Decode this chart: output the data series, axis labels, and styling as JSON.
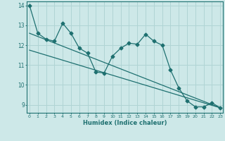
{
  "xlabel": "Humidex (Indice chaleur)",
  "ylabel": "",
  "bg_color": "#cde8e8",
  "grid_color": "#b0d4d4",
  "line_color": "#1e7070",
  "x_values": [
    0,
    1,
    2,
    3,
    4,
    5,
    6,
    7,
    8,
    9,
    10,
    11,
    12,
    13,
    14,
    15,
    16,
    17,
    18,
    19,
    20,
    21,
    22,
    23
  ],
  "series1": [
    14.0,
    12.6,
    12.3,
    12.2,
    13.1,
    12.6,
    11.85,
    11.6,
    10.65,
    10.6,
    11.45,
    11.85,
    12.1,
    12.05,
    12.55,
    12.2,
    12.0,
    10.75,
    9.85,
    9.2,
    8.9,
    8.9,
    9.1,
    8.85
  ],
  "series2_x": [
    0,
    23
  ],
  "series2_y": [
    11.75,
    8.85
  ],
  "series3_x": [
    0,
    23
  ],
  "series3_y": [
    12.6,
    8.85
  ],
  "ylim": [
    8.6,
    14.2
  ],
  "xlim": [
    -0.3,
    23.3
  ],
  "yticks": [
    9,
    10,
    11,
    12,
    13,
    14
  ],
  "xticks": [
    0,
    1,
    2,
    3,
    4,
    5,
    6,
    7,
    8,
    9,
    10,
    11,
    12,
    13,
    14,
    15,
    16,
    17,
    18,
    19,
    20,
    21,
    22,
    23
  ]
}
